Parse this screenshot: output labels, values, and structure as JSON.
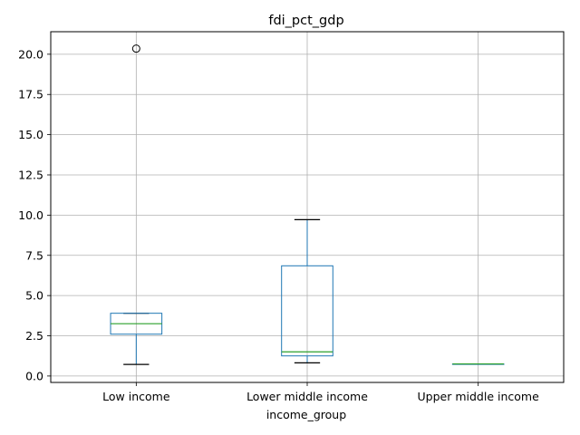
{
  "chart_data": {
    "type": "box",
    "title": "fdi_pct_gdp",
    "xlabel": "income_group",
    "ylabel": "",
    "ylim": [
      -0.4,
      21.4
    ],
    "yticks": [
      0.0,
      2.5,
      5.0,
      7.5,
      10.0,
      12.5,
      15.0,
      17.5,
      20.0
    ],
    "ytick_labels": [
      "0.0",
      "2.5",
      "5.0",
      "7.5",
      "10.0",
      "12.5",
      "15.0",
      "17.5",
      "20.0"
    ],
    "grid": true,
    "categories": [
      "Low income",
      "Lower middle income",
      "Upper middle income"
    ],
    "boxes": [
      {
        "whisker_low": 0.72,
        "q1": 2.6,
        "median": 3.25,
        "q3": 3.9,
        "whisker_high": 3.9,
        "outliers": [
          20.35
        ]
      },
      {
        "whisker_low": 0.82,
        "q1": 1.25,
        "median": 1.5,
        "q3": 6.85,
        "whisker_high": 9.72,
        "outliers": []
      },
      {
        "whisker_low": 0.75,
        "q1": 0.75,
        "median": 0.75,
        "q3": 0.75,
        "whisker_high": 0.75,
        "outliers": []
      }
    ],
    "colors": {
      "box": "#1f77b4",
      "median": "#2ca02c",
      "whisker_cap": "#000000",
      "grid": "#b0b0b0"
    }
  }
}
